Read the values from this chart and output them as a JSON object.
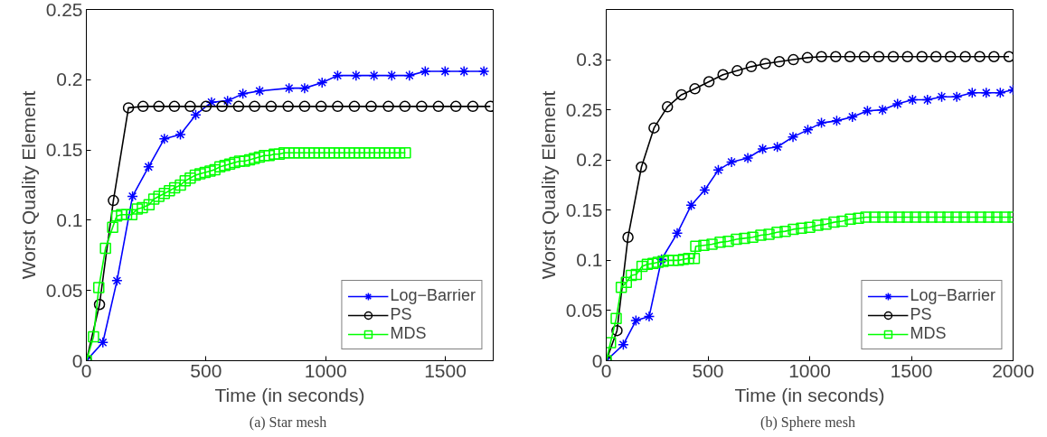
{
  "chart_data": [
    {
      "type": "line",
      "annotations": [
        "(a)  Star mesh"
      ],
      "xlabel": "Time (in seconds)",
      "ylabel": "Worst Quality Element",
      "xlim": [
        0,
        1700
      ],
      "xticks": [
        0,
        500,
        1000,
        1500
      ],
      "ylim": [
        0,
        0.25
      ],
      "yticks": [
        0,
        0.05,
        0.1,
        0.15,
        0.2,
        0.25
      ],
      "grid": false,
      "legend": "bottom right",
      "series": [
        {
          "name": "Log−Barrier",
          "color": "#0000ff",
          "marker": "cross",
          "x": [
            0,
            69,
            128,
            193,
            260,
            326,
            393,
            457,
            523,
            590,
            654,
            724,
            847,
            912,
            985,
            1050,
            1127,
            1202,
            1276,
            1350,
            1416,
            1499,
            1578,
            1661
          ],
          "values": [
            0,
            0.013,
            0.057,
            0.117,
            0.138,
            0.158,
            0.161,
            0.175,
            0.184,
            0.185,
            0.19,
            0.192,
            0.194,
            0.194,
            0.198,
            0.203,
            0.203,
            0.203,
            0.203,
            0.203,
            0.206,
            0.206,
            0.206,
            0.206
          ]
        },
        {
          "name": "PS",
          "color": "#000000",
          "marker": "circle",
          "x": [
            0,
            55,
            113,
            176,
            237,
            303,
            368,
            434,
            500,
            567,
            636,
            703,
            772,
            843,
            912,
            981,
            1050,
            1120,
            1190,
            1262,
            1331,
            1401,
            1471,
            1544,
            1615,
            1688
          ],
          "values": [
            0,
            0.04,
            0.114,
            0.18,
            0.181,
            0.181,
            0.181,
            0.181,
            0.181,
            0.181,
            0.181,
            0.181,
            0.181,
            0.181,
            0.181,
            0.181,
            0.181,
            0.181,
            0.181,
            0.181,
            0.181,
            0.181,
            0.181,
            0.181,
            0.181,
            0.181
          ]
        },
        {
          "name": "MDS",
          "color": "#00ff00",
          "marker": "square",
          "x": [
            0,
            30,
            52,
            80,
            110,
            127,
            147,
            168,
            190,
            213,
            234,
            262,
            282,
            303,
            326,
            347,
            369,
            393,
            413,
            434,
            455,
            475,
            496,
            517,
            537,
            558,
            579,
            599,
            620,
            640,
            661,
            682,
            702,
            723,
            744,
            764,
            785,
            806,
            826,
            847,
            868,
            889,
            910,
            931,
            952,
            973,
            994,
            1015,
            1036,
            1057,
            1078,
            1099,
            1120,
            1141,
            1162,
            1183,
            1204,
            1225,
            1246,
            1267,
            1288,
            1309,
            1333
          ],
          "values": [
            0,
            0.017,
            0.052,
            0.08,
            0.095,
            0.103,
            0.104,
            0.104,
            0.104,
            0.108,
            0.109,
            0.111,
            0.115,
            0.117,
            0.119,
            0.121,
            0.123,
            0.125,
            0.128,
            0.13,
            0.132,
            0.133,
            0.134,
            0.135,
            0.136,
            0.138,
            0.139,
            0.14,
            0.141,
            0.142,
            0.142,
            0.143,
            0.144,
            0.145,
            0.146,
            0.146,
            0.147,
            0.147,
            0.148,
            0.148,
            0.148,
            0.148,
            0.148,
            0.148,
            0.148,
            0.148,
            0.148,
            0.148,
            0.148,
            0.148,
            0.148,
            0.148,
            0.148,
            0.148,
            0.148,
            0.148,
            0.148,
            0.148,
            0.148,
            0.148,
            0.148,
            0.148,
            0.148
          ]
        }
      ]
    },
    {
      "type": "line",
      "annotations": [
        "(b)  Sphere mesh"
      ],
      "xlabel": "Time (in seconds)",
      "ylabel": "Worst Quality Element",
      "xlim": [
        0,
        2000
      ],
      "xticks": [
        0,
        500,
        1000,
        1500,
        2000
      ],
      "ylim": [
        0,
        0.35
      ],
      "yticks": [
        0,
        0.05,
        0.1,
        0.15,
        0.2,
        0.25,
        0.3
      ],
      "grid": false,
      "legend": "bottom right",
      "series": [
        {
          "name": "Log−Barrier",
          "color": "#0000ff",
          "marker": "cross",
          "x": [
            0,
            84,
            146,
            211,
            272,
            349,
            418,
            484,
            551,
            616,
            696,
            769,
            841,
            918,
            991,
            1058,
            1133,
            1210,
            1284,
            1358,
            1432,
            1506,
            1579,
            1649,
            1723,
            1799,
            1868,
            1937,
            2000
          ],
          "values": [
            0,
            0.016,
            0.04,
            0.044,
            0.101,
            0.127,
            0.155,
            0.17,
            0.19,
            0.198,
            0.202,
            0.211,
            0.213,
            0.223,
            0.23,
            0.237,
            0.239,
            0.243,
            0.249,
            0.25,
            0.256,
            0.26,
            0.26,
            0.263,
            0.263,
            0.267,
            0.267,
            0.267,
            0.27
          ]
        },
        {
          "name": "PS",
          "color": "#000000",
          "marker": "circle",
          "x": [
            0,
            53,
            107,
            173,
            235,
            301,
            370,
            436,
            505,
            574,
            644,
            713,
            782,
            851,
            920,
            989,
            1058,
            1128,
            1198,
            1269,
            1340,
            1411,
            1481,
            1552,
            1621,
            1692,
            1765,
            1836,
            1906,
            1980
          ],
          "values": [
            0,
            0.03,
            0.123,
            0.193,
            0.232,
            0.253,
            0.265,
            0.271,
            0.278,
            0.285,
            0.289,
            0.293,
            0.296,
            0.298,
            0.3,
            0.302,
            0.303,
            0.303,
            0.303,
            0.303,
            0.303,
            0.303,
            0.303,
            0.303,
            0.303,
            0.303,
            0.303,
            0.303,
            0.303,
            0.303
          ]
        },
        {
          "name": "MDS",
          "color": "#00ff00",
          "marker": "square",
          "x": [
            0,
            21,
            49,
            74,
            99,
            123,
            148,
            176,
            202,
            230,
            255,
            280,
            305,
            330,
            355,
            380,
            405,
            433,
            440,
            480,
            520,
            560,
            600,
            640,
            680,
            720,
            760,
            800,
            840,
            880,
            920,
            960,
            1000,
            1040,
            1080,
            1120,
            1160,
            1200,
            1240,
            1276,
            1320,
            1360,
            1400,
            1440,
            1480,
            1520,
            1560,
            1600,
            1640,
            1680,
            1720,
            1760,
            1800,
            1840,
            1880,
            1920,
            1960,
            2000
          ],
          "values": [
            0,
            0.018,
            0.042,
            0.073,
            0.078,
            0.085,
            0.086,
            0.094,
            0.096,
            0.097,
            0.098,
            0.099,
            0.1,
            0.1,
            0.1,
            0.101,
            0.102,
            0.102,
            0.114,
            0.115,
            0.116,
            0.118,
            0.119,
            0.121,
            0.122,
            0.123,
            0.125,
            0.126,
            0.128,
            0.129,
            0.131,
            0.132,
            0.133,
            0.135,
            0.136,
            0.138,
            0.139,
            0.141,
            0.142,
            0.143,
            0.143,
            0.143,
            0.143,
            0.143,
            0.143,
            0.143,
            0.143,
            0.143,
            0.143,
            0.143,
            0.143,
            0.143,
            0.143,
            0.143,
            0.143,
            0.143,
            0.143,
            0.143
          ]
        }
      ]
    }
  ]
}
